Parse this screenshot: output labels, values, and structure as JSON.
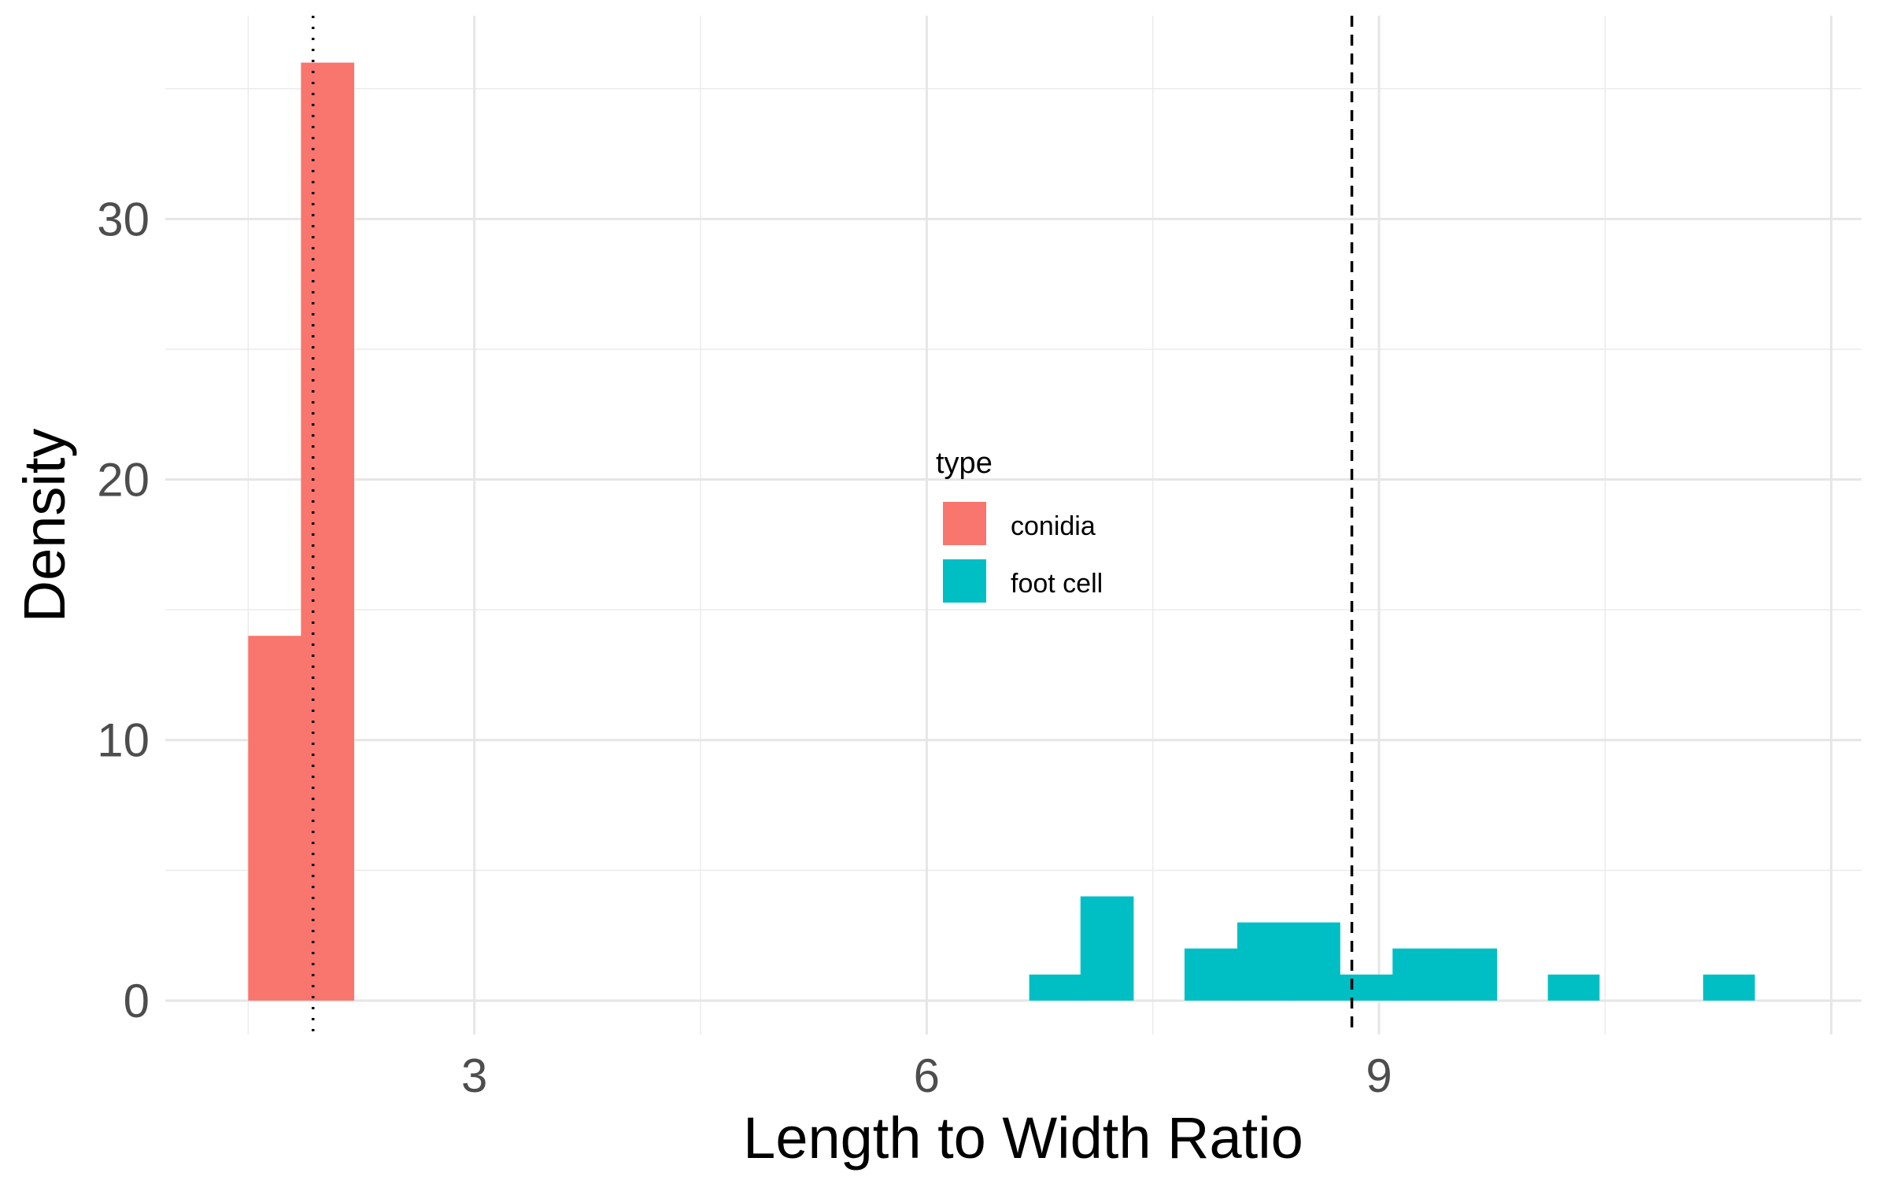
{
  "chart_data": {
    "type": "bar",
    "xlabel": "Length to Width Ratio",
    "ylabel": "Density",
    "xlim": [
      0.95,
      12.2
    ],
    "ylim": [
      -1.3,
      37.8
    ],
    "x_ticks": [
      3,
      6,
      9
    ],
    "y_ticks": [
      0,
      10,
      20,
      30
    ],
    "grid": true,
    "legend": {
      "title": "type",
      "position": "center",
      "entries": [
        {
          "label": "conidia",
          "color": "#F8766D"
        },
        {
          "label": "foot cell",
          "color": "#00BFC4"
        }
      ]
    },
    "series": [
      {
        "name": "conidia",
        "color": "#F8766D",
        "bins": [
          {
            "x0": 1.5,
            "x1": 1.85,
            "density": 14
          },
          {
            "x0": 1.85,
            "x1": 2.2,
            "density": 36
          }
        ]
      },
      {
        "name": "foot cell",
        "color": "#00BFC4",
        "bins": [
          {
            "x0": 6.68,
            "x1": 7.02,
            "density": 1
          },
          {
            "x0": 7.02,
            "x1": 7.37,
            "density": 4
          },
          {
            "x0": 7.71,
            "x1": 8.06,
            "density": 2
          },
          {
            "x0": 8.06,
            "x1": 8.4,
            "density": 3
          },
          {
            "x0": 8.4,
            "x1": 8.74,
            "density": 3
          },
          {
            "x0": 8.74,
            "x1": 9.09,
            "density": 1
          },
          {
            "x0": 9.09,
            "x1": 9.43,
            "density": 2
          },
          {
            "x0": 9.43,
            "x1": 9.78,
            "density": 2
          },
          {
            "x0": 10.12,
            "x1": 10.46,
            "density": 1
          },
          {
            "x0": 11.15,
            "x1": 11.49,
            "density": 1
          }
        ]
      }
    ],
    "reference_lines": [
      {
        "series": "conidia",
        "x": 1.93,
        "style": "dotted"
      },
      {
        "series": "foot cell",
        "x": 8.82,
        "style": "dashed"
      }
    ]
  }
}
